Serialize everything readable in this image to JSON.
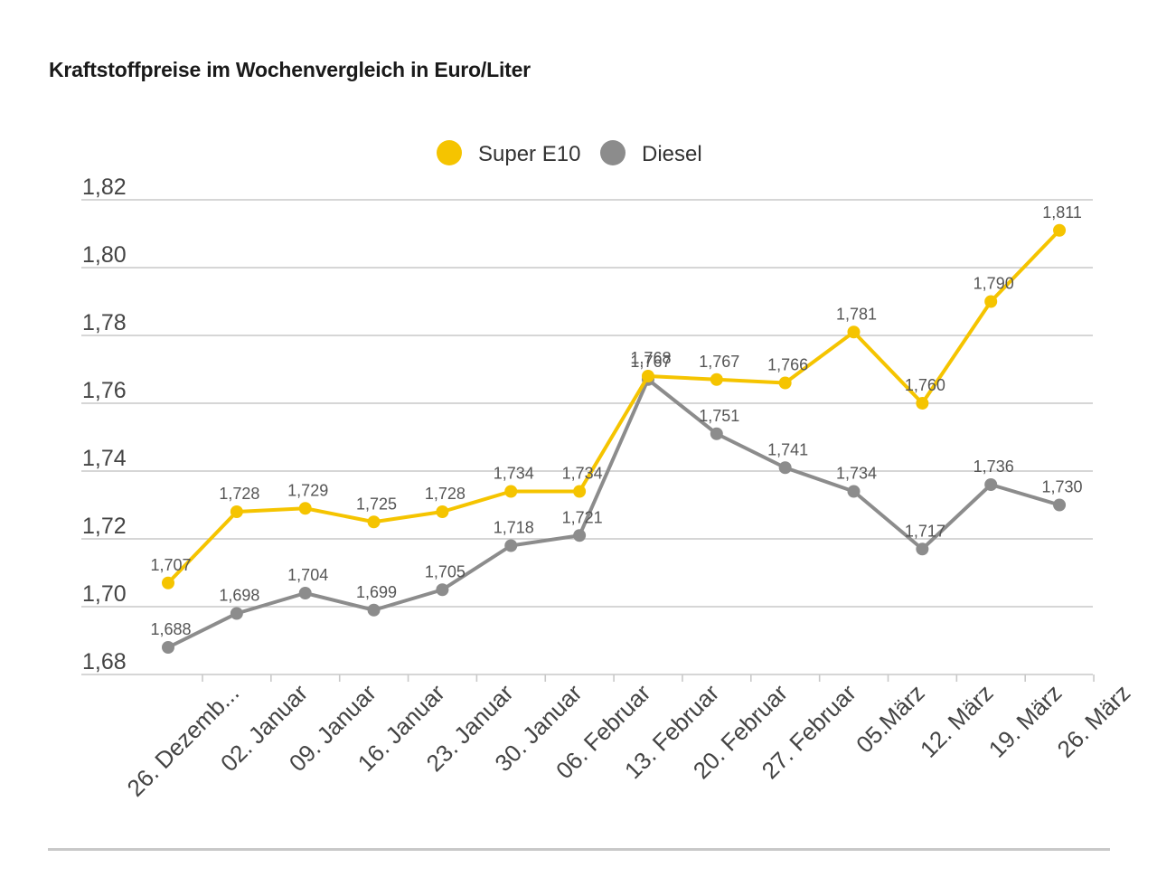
{
  "chart_data": {
    "type": "line",
    "title": "Kraftstoffpreise im Wochenvergleich in Euro/Liter",
    "xlabel": "",
    "ylabel": "",
    "ylim": [
      1.68,
      1.82
    ],
    "yticks": [
      1.68,
      1.7,
      1.72,
      1.74,
      1.76,
      1.78,
      1.8,
      1.82
    ],
    "ytick_labels": [
      "1,68",
      "1,70",
      "1,72",
      "1,74",
      "1,76",
      "1,78",
      "1,80",
      "1,82"
    ],
    "grid": true,
    "legend_position": "top-center",
    "categories": [
      "26. Dezemb...",
      "02. Januar",
      "09. Januar",
      "16. Januar",
      "23. Januar",
      "30. Januar",
      "06. Februar",
      "13. Februar",
      "20. Februar",
      "27. Februar",
      "05.März",
      "12. März",
      "19. März",
      "26. März"
    ],
    "series": [
      {
        "name": "Super E10",
        "color": "#f5c400",
        "values": [
          1.707,
          1.728,
          1.729,
          1.725,
          1.728,
          1.734,
          1.734,
          1.768,
          1.767,
          1.766,
          1.781,
          1.76,
          1.79,
          1.811
        ],
        "labels": [
          "1,707",
          "1,728",
          "1,729",
          "1,725",
          "1,728",
          "1,734",
          "1,734",
          "1,768",
          "1,767",
          "1,766",
          "1,781",
          "1,760",
          "1,790",
          "1,811"
        ]
      },
      {
        "name": "Diesel",
        "color": "#8c8c8c",
        "values": [
          1.688,
          1.698,
          1.704,
          1.699,
          1.705,
          1.718,
          1.721,
          1.767,
          1.751,
          1.741,
          1.734,
          1.717,
          1.736,
          1.73
        ],
        "labels": [
          "1,688",
          "1,698",
          "1,704",
          "1,699",
          "1,705",
          "1,718",
          "1,721",
          "1,767",
          "1,751",
          "1,741",
          "1,734",
          "1,717",
          "1,736",
          "1,730"
        ]
      }
    ]
  }
}
